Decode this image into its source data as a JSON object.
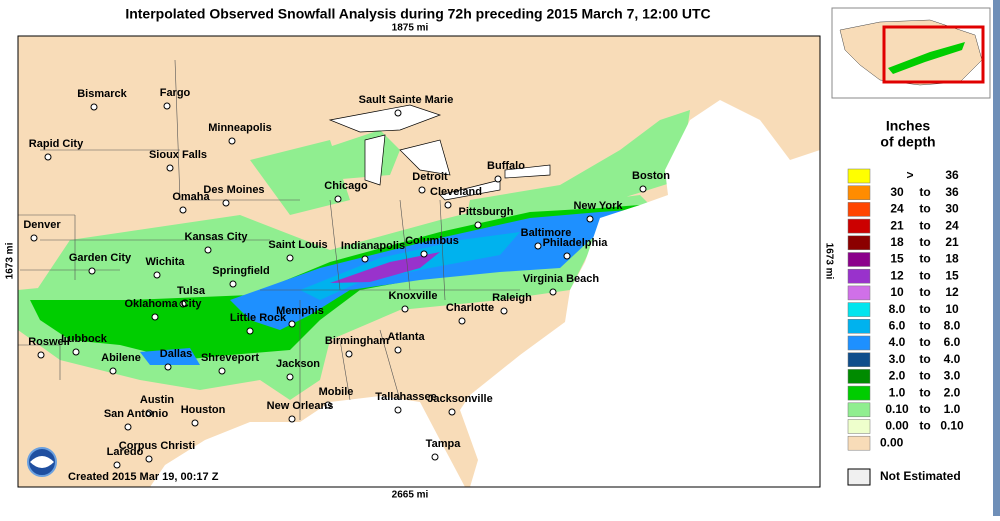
{
  "title": "Interpolated Observed Snowfall Analysis during 72h preceding 2015 March 7, 12:00 UTC",
  "distance_labels": {
    "top": "1875 mi",
    "bottom": "2665 mi",
    "left": "1673 mi",
    "right": "1673 mi"
  },
  "created": "Created 2015 Mar 19, 00:17 Z",
  "cities": [
    "Bismarck",
    "Fargo",
    "Sault Sainte Marie",
    "Minneapolis",
    "Rapid City",
    "Sioux Falls",
    "Detroit",
    "Buffalo",
    "Boston",
    "Des Moines",
    "Chicago",
    "Cleveland",
    "Omaha",
    "Pittsburgh",
    "New York",
    "Denver",
    "Kansas City",
    "Saint Louis",
    "Indianapolis",
    "Columbus",
    "Baltimore",
    "Philadelphia",
    "Garden City",
    "Wichita",
    "Springfield",
    "Virginia Beach",
    "Tulsa",
    "Knoxville",
    "Raleigh",
    "Oklahoma City",
    "Charlotte",
    "Memphis",
    "Little Rock",
    "Lubbock",
    "Atlanta",
    "Birmingham",
    "Roswell",
    "Abilene",
    "Dallas",
    "Shreveport",
    "Jackson",
    "Mobile",
    "Tallahassee",
    "Jacksonville",
    "Austin",
    "New Orleans",
    "Houston",
    "San Antonio",
    "Tampa",
    "Corpus Christi",
    "Laredo"
  ],
  "legend": {
    "title": [
      "Inches",
      "of depth"
    ],
    "rows": [
      {
        "parts": [
          ">",
          "36"
        ],
        "color": "#ffff00"
      },
      {
        "parts": [
          "30",
          "to",
          "36"
        ],
        "color": "#ff8c00"
      },
      {
        "parts": [
          "24",
          "to",
          "30"
        ],
        "color": "#ff4500"
      },
      {
        "parts": [
          "21",
          "to",
          "24"
        ],
        "color": "#cc0000"
      },
      {
        "parts": [
          "18",
          "to",
          "21"
        ],
        "color": "#8b0000"
      },
      {
        "parts": [
          "15",
          "to",
          "18"
        ],
        "color": "#8b008b"
      },
      {
        "parts": [
          "12",
          "to",
          "15"
        ],
        "color": "#9932cc"
      },
      {
        "parts": [
          "10",
          "to",
          "12"
        ],
        "color": "#d070e8"
      },
      {
        "parts": [
          "8.0",
          "to",
          "10"
        ],
        "color": "#00e5ee"
      },
      {
        "parts": [
          "6.0",
          "to",
          "8.0"
        ],
        "color": "#00b2ee"
      },
      {
        "parts": [
          "4.0",
          "to",
          "6.0"
        ],
        "color": "#1e90ff"
      },
      {
        "parts": [
          "3.0",
          "to",
          "4.0"
        ],
        "color": "#104e8b"
      },
      {
        "parts": [
          "2.0",
          "to",
          "3.0"
        ],
        "color": "#008b00"
      },
      {
        "parts": [
          "1.0",
          "to",
          "2.0"
        ],
        "color": "#00cd00"
      },
      {
        "parts": [
          "0.10",
          "to",
          "1.0"
        ],
        "color": "#90ee90"
      },
      {
        "parts": [
          "0.00",
          "to",
          "0.10"
        ],
        "color": "#eeffcc"
      },
      {
        "parts": [
          "0.00"
        ],
        "color": "#f8dcb8"
      }
    ],
    "not_estimated": {
      "label": "Not Estimated",
      "color": "#f0f0f0"
    }
  }
}
